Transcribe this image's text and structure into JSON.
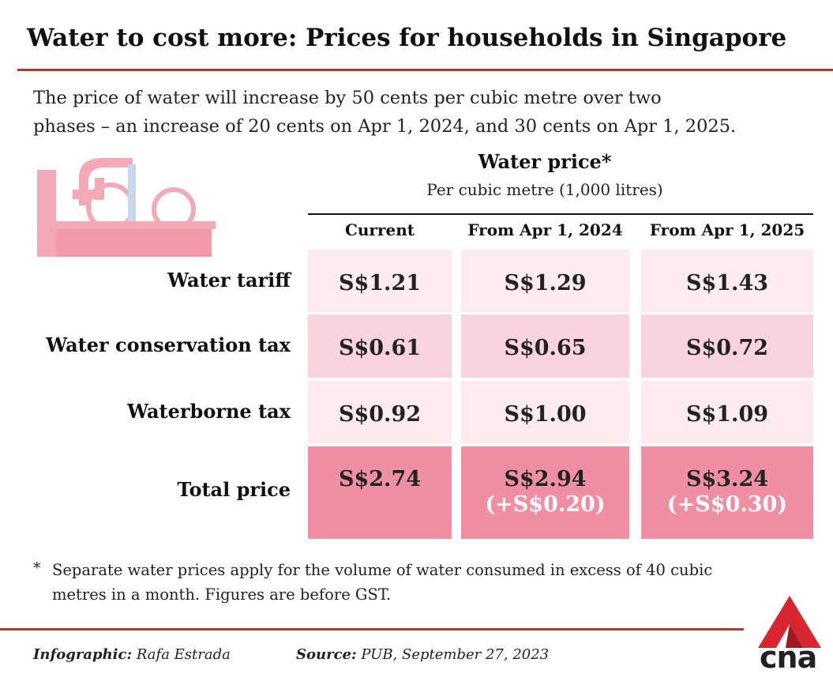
{
  "header": {
    "title": "Water to cost more: Prices for households in Singapore",
    "subtitle": [
      "The price of water will increase by 50 cents per cubic metre over two",
      "phases – an increase of 20 cents on Apr 1, 2024, and 30 cents on Apr 1, 2025."
    ]
  },
  "table": {
    "title": "Water price*",
    "subtitle": "Per cubic metre (1,000 litres)",
    "columns": [
      "Current",
      "From Apr 1, 2024",
      "From Apr 1, 2025"
    ],
    "rows": [
      {
        "label": "Water tariff",
        "cells": [
          "S$1.21",
          "S$1.29",
          "S$1.43"
        ]
      },
      {
        "label": "Water conservation tax",
        "cells": [
          "S$0.61",
          "S$0.65",
          "S$0.72"
        ]
      },
      {
        "label": "Waterborne tax",
        "cells": [
          "S$0.92",
          "S$1.00",
          "S$1.09"
        ]
      },
      {
        "label": "Total price",
        "cells": [
          "S$2.74",
          "S$2.94",
          "S$3.24"
        ],
        "changes": [
          "(+S$0.20)",
          "(+S$0.30)"
        ]
      }
    ]
  },
  "footnote": {
    "marker": "*",
    "lines": [
      "Separate water prices apply for the volume of water consumed in excess of 40 cubic",
      "metres in a month. Figures are before GST."
    ]
  },
  "credits": {
    "infographic_label": "Infographic:",
    "infographic": "Rafa Estrada",
    "source_label": "Source:",
    "source": "PUB, September 27, 2023"
  },
  "logo": "cna"
}
